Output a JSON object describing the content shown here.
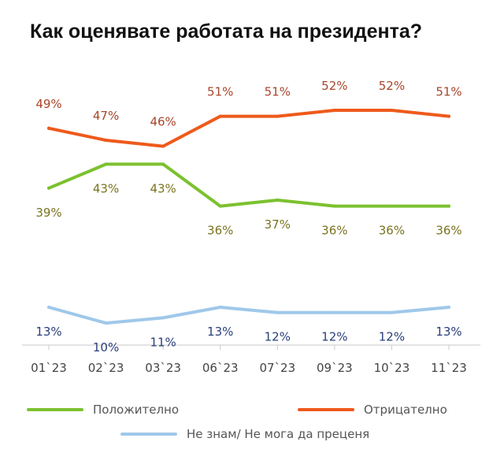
{
  "chart_data": {
    "type": "line",
    "title": "Как оценявате работата на президента?",
    "categories": [
      "01`23",
      "02`23",
      "03`23",
      "06`23",
      "07`23",
      "09`23",
      "10`23",
      "11`23"
    ],
    "series": [
      {
        "name": "Отрицателно",
        "color": "#ee5a1c",
        "label_color": "#a8452a",
        "values": [
          49,
          47,
          46,
          51,
          51,
          52,
          52,
          51
        ],
        "labels": [
          "49%",
          "47%",
          "46%",
          "51%",
          "51%",
          "52%",
          "52%",
          "51%"
        ]
      },
      {
        "name": "Положително",
        "color": "#7cc12f",
        "label_color": "#7a7320",
        "values": [
          39,
          43,
          43,
          36,
          37,
          36,
          36,
          36
        ],
        "labels": [
          "39%",
          "43%",
          "43%",
          "36%",
          "37%",
          "36%",
          "36%",
          "36%"
        ]
      },
      {
        "name": "Не знам/ Не мога да преценя",
        "color": "#9fc8ea",
        "label_color": "#2a3f7a",
        "values": [
          13,
          10,
          11,
          13,
          12,
          12,
          12,
          13
        ],
        "labels": [
          "13%",
          "10%",
          "11%",
          "13%",
          "12%",
          "12%",
          "12%",
          "13%"
        ]
      }
    ],
    "legend": "bottom",
    "grid": false
  }
}
